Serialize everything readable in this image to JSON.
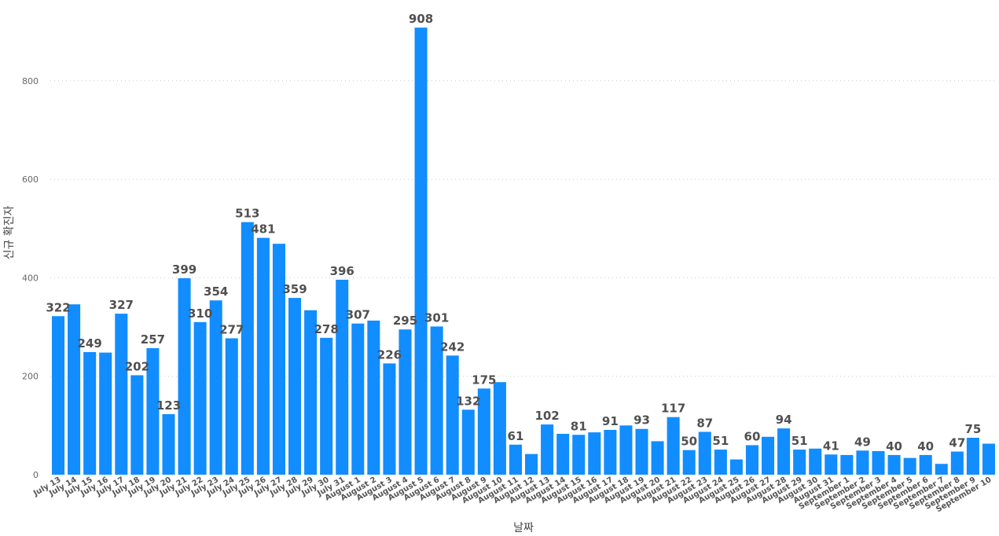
{
  "chart_data": {
    "type": "bar",
    "xlabel": "날짜",
    "ylabel": "신규 확진자",
    "ylim": [
      0,
      920
    ],
    "yticks": [
      0,
      200,
      400,
      600,
      800
    ],
    "grid": true,
    "color": "#118dff",
    "categories": [
      "July 13",
      "July 14",
      "July 15",
      "July 16",
      "July 17",
      "July 18",
      "July 19",
      "July 20",
      "July 21",
      "July 22",
      "July 23",
      "July 24",
      "July 25",
      "July 26",
      "July 27",
      "July 28",
      "July 29",
      "July 30",
      "July 31",
      "August 1",
      "August 2",
      "August 3",
      "August 4",
      "August 5",
      "August 6",
      "August 7",
      "August 8",
      "August 9",
      "August 10",
      "August 11",
      "August 12",
      "August 13",
      "August 14",
      "August 15",
      "August 16",
      "August 17",
      "August 18",
      "August 19",
      "August 20",
      "August 21",
      "August 22",
      "August 23",
      "August 24",
      "August 25",
      "August 26",
      "August 27",
      "August 28",
      "August 29",
      "August 30",
      "August 31",
      "September 1",
      "September 2",
      "September 3",
      "September 4",
      "September 5",
      "September 6",
      "September 7",
      "September 8",
      "September 9",
      "September 10"
    ],
    "values": [
      322,
      346,
      249,
      248,
      327,
      202,
      257,
      123,
      399,
      310,
      354,
      277,
      513,
      481,
      469,
      359,
      334,
      278,
      396,
      307,
      313,
      226,
      295,
      908,
      301,
      242,
      132,
      175,
      188,
      61,
      42,
      102,
      83,
      81,
      86,
      91,
      100,
      93,
      68,
      117,
      50,
      87,
      51,
      31,
      60,
      77,
      94,
      51,
      53,
      41,
      40,
      49,
      48,
      40,
      34,
      40,
      22,
      47,
      75,
      63
    ],
    "labeled": [
      true,
      false,
      true,
      false,
      true,
      true,
      true,
      true,
      true,
      true,
      true,
      true,
      true,
      true,
      false,
      true,
      false,
      true,
      true,
      true,
      false,
      true,
      true,
      true,
      true,
      true,
      true,
      true,
      false,
      true,
      false,
      true,
      false,
      true,
      false,
      true,
      false,
      true,
      false,
      true,
      true,
      true,
      true,
      false,
      true,
      false,
      true,
      true,
      false,
      true,
      false,
      true,
      false,
      true,
      false,
      true,
      false,
      true,
      true,
      false
    ]
  }
}
